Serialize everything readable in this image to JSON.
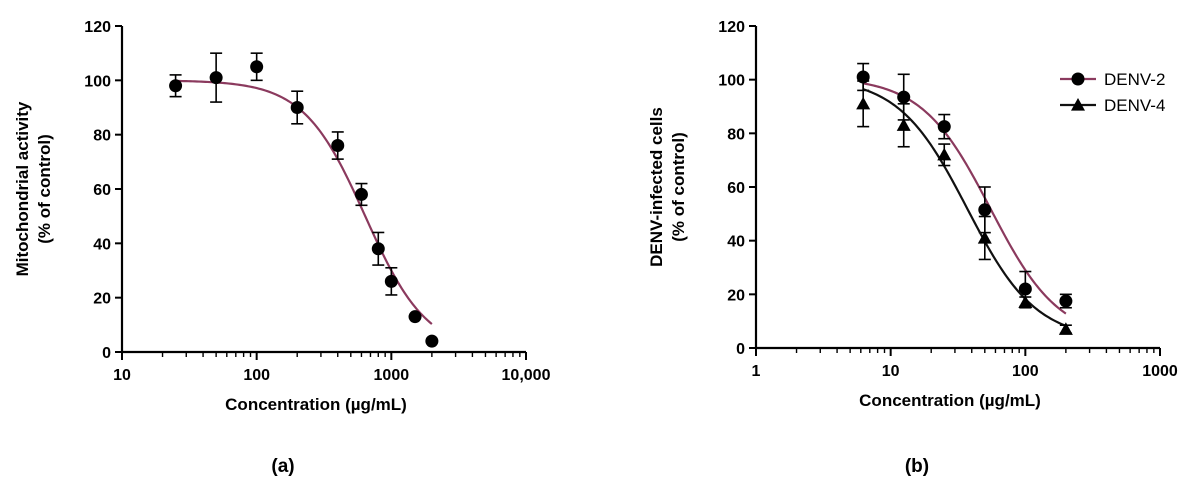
{
  "chart_data": [
    {
      "panel": "(a)",
      "type": "scatter",
      "xlabel": "Concentration (µg/mL)",
      "ylabel": [
        "Mitochondrial activity",
        "(% of control)"
      ],
      "xscale": "log",
      "xlim": [
        10,
        10000
      ],
      "ylim": [
        0,
        120
      ],
      "xticks": [
        10,
        100,
        1000,
        10000
      ],
      "xtick_labels": [
        "10",
        "100",
        "1000",
        "10,000"
      ],
      "yticks": [
        0,
        20,
        40,
        60,
        80,
        100,
        120
      ],
      "grid": false,
      "legend": "none",
      "series": [
        {
          "color": "#8b3a5e",
          "marker": "circle",
          "fit": {
            "top": 100,
            "bottom": 0,
            "ec50": 640,
            "hill": 1.9
          },
          "x": [
            25,
            50,
            100,
            200,
            400,
            600,
            800,
            1000,
            1500,
            2000
          ],
          "y": [
            98,
            101,
            105,
            90,
            76,
            58,
            38,
            26,
            13,
            4
          ],
          "err": [
            4,
            9,
            5,
            6,
            5,
            4,
            6,
            5,
            0,
            0
          ]
        }
      ]
    },
    {
      "panel": "(b)",
      "type": "scatter",
      "xlabel": "Concentration (µg/mL)",
      "ylabel": [
        "DENV-infected cells",
        "(% of control)"
      ],
      "xscale": "log",
      "xlim": [
        1,
        1000
      ],
      "ylim": [
        0,
        120
      ],
      "xticks": [
        1,
        10,
        100,
        1000
      ],
      "xtick_labels": [
        "1",
        "10",
        "100",
        "1000"
      ],
      "yticks": [
        0,
        20,
        40,
        60,
        80,
        100,
        120
      ],
      "grid": false,
      "legend": "top-right",
      "series": [
        {
          "name": "DENV-2",
          "color": "#8b3a5e",
          "marker": "circle",
          "fit": {
            "top": 101,
            "bottom": 3,
            "ec50": 55,
            "hill": 1.7
          },
          "x": [
            6.25,
            12.5,
            25,
            50,
            100,
            200
          ],
          "y": [
            101,
            93.5,
            82.5,
            51.5,
            22,
            17.5
          ],
          "err": [
            5,
            8.5,
            4.5,
            8.5,
            6.5,
            2.5
          ]
        },
        {
          "name": "DENV-4",
          "color": "#111111",
          "marker": "triangle",
          "fit": {
            "top": 101,
            "bottom": 3,
            "ec50": 37,
            "hill": 1.7
          },
          "x": [
            6.25,
            12.5,
            25,
            50,
            100,
            200
          ],
          "y": [
            91,
            83,
            72,
            41,
            17,
            7
          ],
          "err": [
            8.5,
            8,
            4,
            8,
            2,
            1.5
          ]
        }
      ]
    }
  ]
}
